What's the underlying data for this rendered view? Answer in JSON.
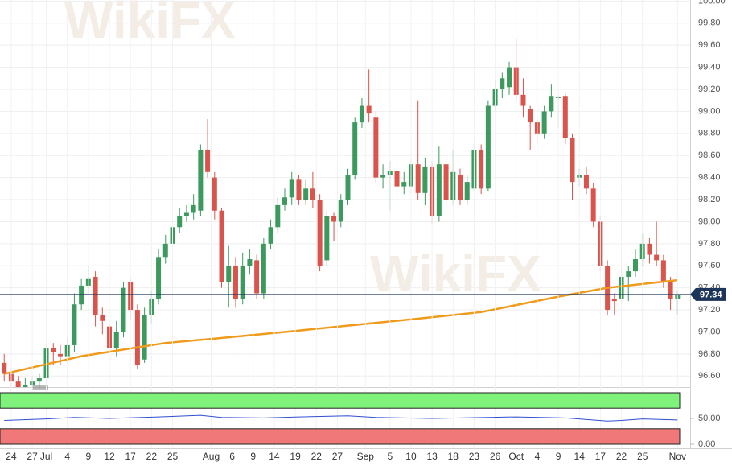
{
  "chart_data": [
    {
      "type": "candlestick",
      "watermark": "WikiFX",
      "x": [
        -1,
        0,
        1,
        2,
        3,
        4,
        5,
        6,
        7,
        8,
        9,
        10,
        11,
        12,
        13,
        14,
        15,
        16,
        17,
        18,
        19,
        20,
        21,
        22,
        23,
        24,
        25,
        26,
        27,
        28,
        29,
        30,
        31,
        32,
        33,
        34,
        35,
        36,
        37,
        38,
        39,
        40,
        41,
        42,
        43,
        44,
        45,
        46,
        47,
        48,
        49,
        50,
        51,
        52,
        53,
        54,
        55,
        56,
        57,
        58,
        59,
        60,
        61,
        62,
        63,
        64,
        65,
        66,
        67,
        68,
        69,
        70,
        71,
        72,
        73,
        74,
        75,
        76,
        77,
        78,
        79,
        80,
        81,
        82,
        83,
        84,
        85,
        86,
        87,
        88,
        89,
        90,
        91,
        92,
        93,
        94,
        95
      ],
      "open": [
        96.72,
        96.62,
        96.55,
        96.5,
        96.52,
        96.55,
        96.58,
        96.85,
        96.8,
        96.78,
        96.88,
        97.25,
        97.42,
        97.5,
        97.15,
        97.05,
        96.85,
        97.0,
        97.45,
        97.2,
        96.75,
        97.15,
        97.3,
        97.68,
        97.8,
        97.95,
        98.05,
        98.08,
        98.1,
        98.65,
        98.4,
        98.1,
        97.45,
        97.6,
        97.3,
        97.6,
        97.65,
        97.35,
        97.8,
        97.95,
        98.15,
        98.22,
        98.38,
        98.2,
        98.3,
        98.2,
        97.65,
        98.05,
        98.0,
        98.2,
        98.42,
        98.9,
        99.05,
        98.95,
        98.4,
        98.42,
        98.46,
        98.32,
        98.32,
        98.52,
        98.26,
        98.5,
        98.05,
        98.52,
        98.2,
        98.42,
        98.2,
        98.3,
        98.65,
        98.3,
        99.05,
        99.2,
        99.22,
        99.4,
        99.15,
        99.02,
        98.9,
        98.8,
        99.0,
        99.12,
        99.14,
        98.76,
        98.4,
        98.42,
        98.3,
        98.0,
        97.6,
        97.3,
        97.3,
        97.5,
        97.55,
        97.66,
        97.8,
        97.7,
        97.65,
        97.45,
        97.3
      ],
      "high": [
        96.8,
        96.68,
        96.6,
        96.58,
        96.6,
        96.62,
        96.9,
        96.9,
        96.88,
        96.95,
        97.35,
        97.48,
        97.6,
        97.55,
        97.22,
        97.12,
        97.1,
        97.45,
        97.48,
        97.25,
        97.22,
        97.38,
        97.75,
        97.88,
        98.05,
        98.12,
        98.15,
        98.25,
        98.7,
        98.93,
        98.45,
        98.12,
        97.78,
        97.68,
        97.72,
        97.75,
        97.7,
        97.85,
        98.02,
        98.22,
        98.3,
        98.45,
        98.42,
        98.38,
        98.45,
        98.25,
        98.1,
        98.08,
        98.25,
        98.48,
        98.95,
        99.12,
        99.38,
        99.0,
        98.52,
        98.55,
        98.55,
        98.45,
        98.58,
        99.1,
        98.58,
        98.55,
        98.68,
        98.6,
        98.65,
        98.48,
        98.42,
        98.7,
        98.7,
        99.1,
        99.28,
        99.35,
        99.45,
        99.66,
        99.3,
        99.05,
        98.95,
        99.05,
        99.25,
        99.15,
        99.16,
        98.8,
        98.48,
        98.5,
        98.35,
        98.05,
        97.65,
        97.35,
        97.58,
        97.6,
        97.75,
        97.9,
        97.85,
        98.0,
        97.7,
        97.5,
        97.38
      ],
      "low": [
        96.55,
        96.48,
        96.44,
        96.45,
        96.46,
        96.5,
        96.52,
        96.7,
        96.7,
        96.72,
        96.82,
        97.2,
        97.35,
        97.05,
        96.98,
        96.8,
        96.78,
        96.95,
        97.12,
        96.66,
        96.72,
        97.08,
        97.25,
        97.62,
        97.75,
        97.9,
        98.0,
        98.02,
        98.05,
        98.4,
        98.02,
        97.4,
        97.22,
        97.22,
        97.25,
        97.52,
        97.3,
        97.3,
        97.75,
        97.9,
        98.1,
        98.15,
        98.15,
        98.15,
        98.12,
        97.55,
        97.6,
        97.82,
        97.95,
        98.15,
        98.38,
        98.85,
        98.9,
        98.35,
        98.3,
        98.1,
        98.2,
        98.25,
        98.25,
        98.2,
        98.15,
        97.98,
        98.0,
        98.15,
        98.15,
        98.15,
        98.15,
        98.28,
        98.25,
        98.28,
        99.0,
        99.12,
        99.15,
        99.1,
        98.95,
        98.65,
        98.7,
        98.75,
        98.95,
        98.85,
        98.7,
        98.2,
        98.32,
        98.25,
        97.95,
        97.55,
        97.15,
        97.15,
        97.25,
        97.28,
        97.5,
        97.6,
        97.62,
        97.6,
        97.4,
        97.2,
        97.15
      ],
      "close": [
        96.62,
        96.55,
        96.5,
        96.52,
        96.55,
        96.58,
        96.85,
        96.82,
        96.78,
        96.88,
        97.25,
        97.42,
        97.48,
        97.15,
        97.1,
        96.85,
        97.0,
        97.4,
        97.2,
        96.7,
        97.15,
        97.3,
        97.68,
        97.8,
        97.95,
        98.05,
        98.08,
        98.15,
        98.65,
        98.45,
        98.1,
        97.45,
        97.6,
        97.3,
        97.6,
        97.66,
        97.35,
        97.8,
        97.95,
        98.15,
        98.22,
        98.38,
        98.2,
        98.3,
        98.2,
        97.6,
        98.05,
        98.0,
        98.2,
        98.42,
        98.9,
        99.05,
        98.98,
        98.4,
        98.42,
        98.46,
        98.32,
        98.36,
        98.52,
        98.26,
        98.5,
        98.05,
        98.52,
        98.2,
        98.45,
        98.2,
        98.36,
        98.65,
        98.3,
        99.05,
        99.2,
        99.3,
        99.4,
        99.15,
        99.05,
        98.9,
        98.8,
        99.0,
        99.14,
        99.13,
        98.76,
        98.36,
        98.42,
        98.3,
        98.0,
        97.6,
        97.2,
        97.28,
        97.5,
        97.55,
        97.66,
        97.8,
        97.7,
        97.65,
        97.45,
        97.3,
        97.34
      ],
      "up_color": "#3d9a5e",
      "down_color": "#d9544d",
      "series": [
        {
          "color": "#f09a1a",
          "x": [
            -1,
            10,
            22,
            29,
            39,
            50,
            61,
            67,
            78,
            85,
            95
          ],
          "values": [
            96.62,
            96.78,
            96.9,
            96.94,
            97.0,
            97.07,
            97.14,
            97.18,
            97.32,
            97.4,
            97.47
          ]
        }
      ],
      "last_price": 97.34,
      "last_price_color": "#1d355a",
      "xlim": [
        -1.6,
        96.8
      ],
      "ylim": [
        96.5,
        100.01
      ],
      "yticks": [
        {
          "value": 96.6,
          "label": "96.60"
        },
        {
          "value": 96.8,
          "label": "96.80"
        },
        {
          "value": 97,
          "label": "97.00"
        },
        {
          "value": 97.2,
          "label": "97.20"
        },
        {
          "value": 97.4,
          "label": "97.40"
        },
        {
          "value": 97.6,
          "label": "97.60"
        },
        {
          "value": 97.8,
          "label": "97.80"
        },
        {
          "value": 98,
          "label": "98.00"
        },
        {
          "value": 98.2,
          "label": "98.20"
        },
        {
          "value": 98.4,
          "label": "98.40"
        },
        {
          "value": 98.6,
          "label": "98.60"
        },
        {
          "value": 98.8,
          "label": "98.80"
        },
        {
          "value": 99,
          "label": "99.00"
        },
        {
          "value": 99.2,
          "label": "99.20"
        },
        {
          "value": 99.4,
          "label": "99.40"
        },
        {
          "value": 99.6,
          "label": "99.60"
        },
        {
          "value": 99.8,
          "label": "99.80"
        },
        {
          "value": 100,
          "label": "100.00"
        }
      ],
      "xticks": [
        {
          "value": 0,
          "label": "24"
        },
        {
          "value": 3,
          "label": "27"
        },
        {
          "value": 5,
          "label": "Jul"
        },
        {
          "value": 8,
          "label": "4"
        },
        {
          "value": 11,
          "label": "9"
        },
        {
          "value": 14,
          "label": "12"
        },
        {
          "value": 17,
          "label": "17"
        },
        {
          "value": 20,
          "label": "22"
        },
        {
          "value": 23,
          "label": "25"
        },
        {
          "value": 28.5,
          "label": "Aug"
        },
        {
          "value": 31.5,
          "label": "6"
        },
        {
          "value": 34.5,
          "label": "9"
        },
        {
          "value": 37.5,
          "label": "14"
        },
        {
          "value": 40.5,
          "label": "19"
        },
        {
          "value": 43.5,
          "label": "22"
        },
        {
          "value": 46.5,
          "label": "27"
        },
        {
          "value": 50.5,
          "label": "Sep"
        },
        {
          "value": 54,
          "label": "5"
        },
        {
          "value": 57,
          "label": "10"
        },
        {
          "value": 60,
          "label": "13"
        },
        {
          "value": 63,
          "label": "18"
        },
        {
          "value": 66,
          "label": "23"
        },
        {
          "value": 69,
          "label": "26"
        },
        {
          "value": 72,
          "label": "Oct"
        },
        {
          "value": 75,
          "label": "4"
        },
        {
          "value": 78,
          "label": "9"
        },
        {
          "value": 81,
          "label": "14"
        },
        {
          "value": 84,
          "label": "17"
        },
        {
          "value": 87,
          "label": "22"
        },
        {
          "value": 90,
          "label": "25"
        },
        {
          "value": 95,
          "label": "Nov"
        }
      ],
      "grid": true
    },
    {
      "type": "line",
      "series": [
        {
          "color": "#2f4fd0",
          "x": [
            -1,
            3,
            5,
            9,
            14,
            21,
            27,
            30,
            36,
            41,
            48,
            52,
            60,
            68,
            72,
            79,
            85,
            87,
            90,
            95
          ],
          "values": [
            46,
            48,
            49,
            52,
            50,
            53,
            56,
            52,
            51,
            53,
            55,
            52,
            50,
            52,
            53,
            51,
            45,
            46,
            49,
            47
          ]
        }
      ],
      "bands": [
        {
          "from": 70,
          "to": 100,
          "color": "#7ef27a"
        },
        {
          "from": 0,
          "to": 30,
          "color": "#f07878"
        }
      ],
      "xlim": [
        -1.6,
        96.8
      ],
      "ylim": [
        0,
        100
      ],
      "yticks": [
        {
          "value": 50,
          "label": "50.00"
        },
        {
          "value": 0,
          "label": "0.00"
        }
      ]
    }
  ]
}
